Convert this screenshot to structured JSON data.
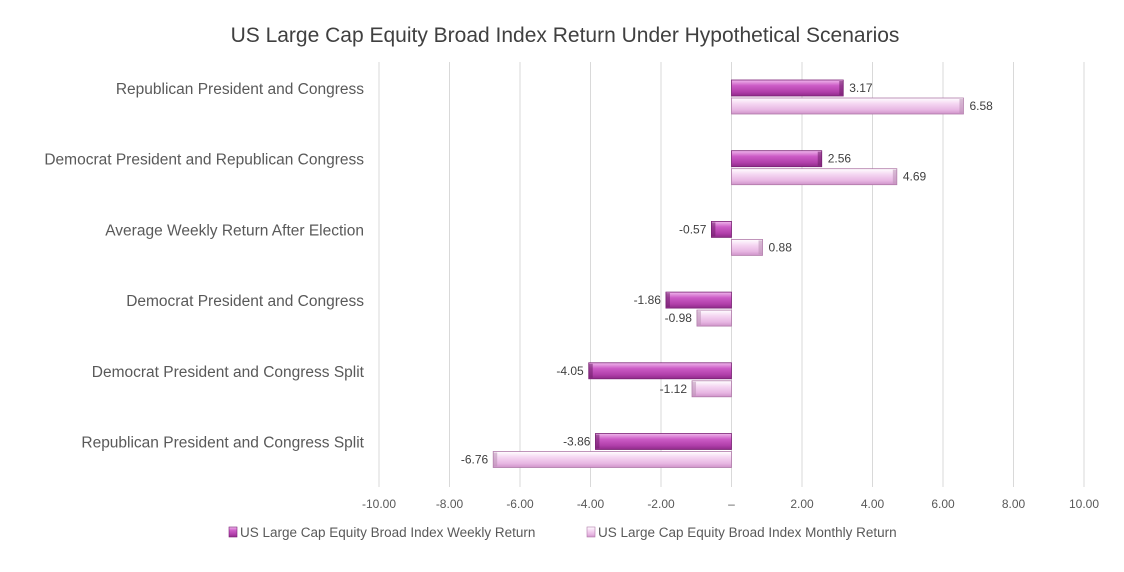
{
  "chart_data": {
    "type": "bar",
    "orientation": "horizontal",
    "title": "US Large Cap Equity Broad Index Return Under Hypothetical Scenarios",
    "categories": [
      "Republican President and Congress",
      "Democrat President and Republican Congress",
      "Average Weekly Return After Election",
      "Democrat President and Congress",
      "Democrat President and Congress Split",
      "Republican President and Congress Split"
    ],
    "series": [
      {
        "name": "US Large Cap Equity Broad Index Weekly Return",
        "values": [
          3.17,
          2.56,
          -0.57,
          -1.86,
          -4.05,
          -3.86
        ],
        "labels": [
          "3.17",
          "2.56",
          "-0.57",
          "-1.86",
          "-4.05",
          "-3.86"
        ],
        "color": "#c04fba"
      },
      {
        "name": "US Large Cap Equity Broad Index Monthly Return",
        "values": [
          6.58,
          4.69,
          0.88,
          -0.98,
          -1.12,
          -6.76
        ],
        "labels": [
          "6.58",
          "4.69",
          "0.88",
          "-0.98",
          "-1.12",
          "-6.76"
        ],
        "color": "#ebbde6"
      }
    ],
    "xlim": [
      -10,
      10
    ],
    "xticks": [
      -10,
      -8,
      -6,
      -4,
      -2,
      0,
      2,
      4,
      6,
      8,
      10
    ],
    "xtick_labels": [
      "-10.00",
      "-8.00",
      "-6.00",
      "-4.00",
      "-2.00",
      "–",
      "2.00",
      "4.00",
      "6.00",
      "8.00",
      "10.00"
    ],
    "grid": true,
    "legend_position": "bottom",
    "xlabel": "",
    "ylabel": ""
  }
}
